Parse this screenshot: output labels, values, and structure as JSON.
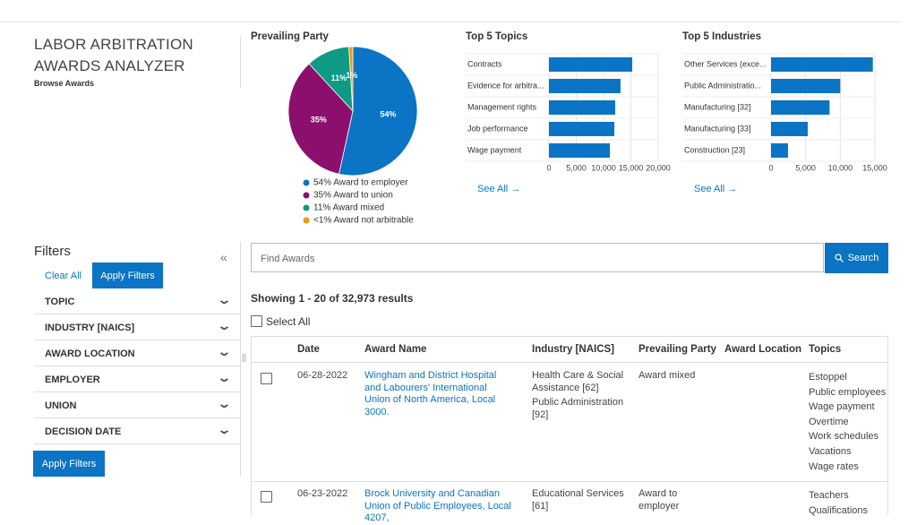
{
  "header": {
    "title": "LABOR ARBITRATION AWARDS ANALYZER",
    "subtitle": "Browse Awards"
  },
  "chart_data": [
    {
      "type": "pie",
      "title": "Prevailing Party",
      "categories": [
        "54% Award to employer",
        "35% Award to union",
        "11% Award mixed",
        "<1% Award not arbitrable"
      ],
      "values": [
        54,
        35,
        11,
        1
      ],
      "value_labels": [
        "54%",
        "35%",
        "11%",
        "1%"
      ],
      "colors": [
        "#0b74c4",
        "#8c0f6e",
        "#0f9a85",
        "#f29a0b"
      ]
    },
    {
      "type": "hbar",
      "title": "Top 5 Topics",
      "categories": [
        "Contracts",
        "Evidence for arbitra...",
        "Management rights",
        "Job performance",
        "Wage payment"
      ],
      "values": [
        15250,
        13100,
        12130,
        11970,
        11150
      ],
      "color": "#0b74c4",
      "xlim": [
        0,
        20000
      ],
      "xticks": [
        0,
        {
          "value": 5000,
          "label": "5,000"
        },
        {
          "value": 10000,
          "label": "10,000"
        },
        {
          "value": 15000,
          "label": "15,000"
        },
        {
          "value": 20000,
          "label": "20,000"
        }
      ],
      "grid": true
    },
    {
      "type": "hbar",
      "title": "Top 5 Industries",
      "categories": [
        "Other Services (exce...",
        "Public Administratio...",
        "Manufacturing [32]",
        "Manufacturing [33]",
        "Construction [23]"
      ],
      "values": [
        14700,
        10000,
        8450,
        5300,
        2450
      ],
      "color": "#0b74c4",
      "xlim": [
        0,
        15000
      ],
      "xticks": [
        0,
        {
          "value": 5000,
          "label": "5,000"
        },
        {
          "value": 10000,
          "label": "10,000"
        },
        {
          "value": 15000,
          "label": "15,000"
        }
      ],
      "grid": true
    }
  ],
  "see_all_links": [
    "See All →",
    "See All →"
  ],
  "filters": {
    "title": "Filters",
    "clear": "Clear All",
    "apply": "Apply Filters",
    "items": [
      "TOPIC",
      "INDUSTRY [NAICS]",
      "AWARD LOCATION",
      "EMPLOYER",
      "UNION",
      "DECISION DATE"
    ],
    "apply_bottom": "Apply Filters"
  },
  "search": {
    "placeholder": "Find Awards",
    "button": "Search"
  },
  "results": {
    "summary": "Showing 1 - 20 of 32,973 results",
    "select_all": "Select All",
    "columns": [
      "Date",
      "Award Name",
      "Industry [NAICS]",
      "Prevailing Party",
      "Award Location",
      "Topics"
    ],
    "rows": [
      {
        "date": "06-28-2022",
        "name": "Wingham and District Hospital and Labourers' International Union of North America, Local 3000.",
        "industries": [
          "Health Care & Social Assistance [62]",
          "Public Administration [92]"
        ],
        "party": "Award mixed",
        "topics": [
          "Estoppel",
          "Public employees",
          "Wage payment",
          "Overtime",
          "Work schedules",
          "Vacations",
          "Wage rates"
        ]
      },
      {
        "date": "06-23-2022",
        "name": "Brock University and Canadian Union of Public Employees, Local 4207,",
        "industries": [
          "Educational Services [61]"
        ],
        "party": "Award to employer",
        "topics": [
          "Teachers",
          "Qualifications"
        ]
      }
    ]
  }
}
